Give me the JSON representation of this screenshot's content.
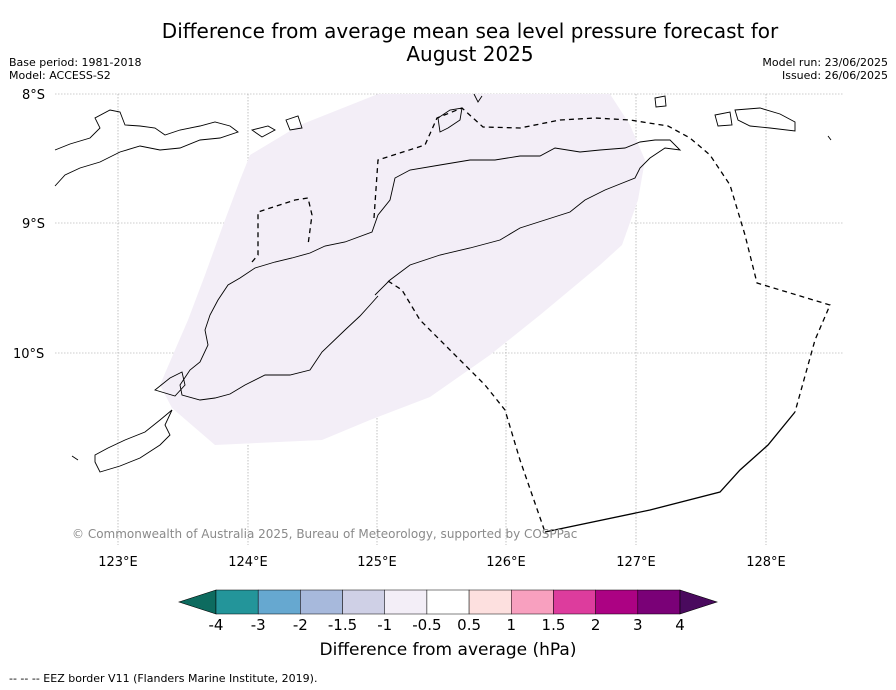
{
  "header": {
    "title_line1": "Difference from average mean sea level pressure forecast for",
    "title_line2": "August 2025",
    "base_period": "Base period: 1981-2018",
    "model": "Model: ACCESS-S2",
    "model_run": "Model run: 23/06/2025",
    "issued": "Issued: 26/06/2025"
  },
  "map": {
    "lat_labels": [
      "8°S",
      "9°S",
      "10°S"
    ],
    "lon_labels": [
      "123°E",
      "124°E",
      "125°E",
      "126°E",
      "127°E",
      "128°E"
    ],
    "anomaly_fill_class": "-1 to -0.5",
    "anomaly_fill_color": "#f3eef7",
    "copyright": "© Commonwealth of Australia 2025, Bureau of Meteorology, supported by COSPPac"
  },
  "colorbar": {
    "ticks": [
      "-4",
      "-3",
      "-2",
      "-1.5",
      "-1",
      "-0.5",
      "0.5",
      "1",
      "1.5",
      "2",
      "3",
      "4"
    ],
    "colors": [
      "#0d6b5f",
      "#23959a",
      "#66a8d0",
      "#a7b9dc",
      "#cfd0e6",
      "#f3eef7",
      "#ffffff",
      "#fde0df",
      "#f8a0bf",
      "#dd3c9d",
      "#ac0283",
      "#7a0177",
      "#4a0a5e"
    ],
    "label": "Difference from average (hPa)"
  },
  "footnote": "--  --  -- EEZ border V11 (Flanders Marine Institute, 2019)."
}
